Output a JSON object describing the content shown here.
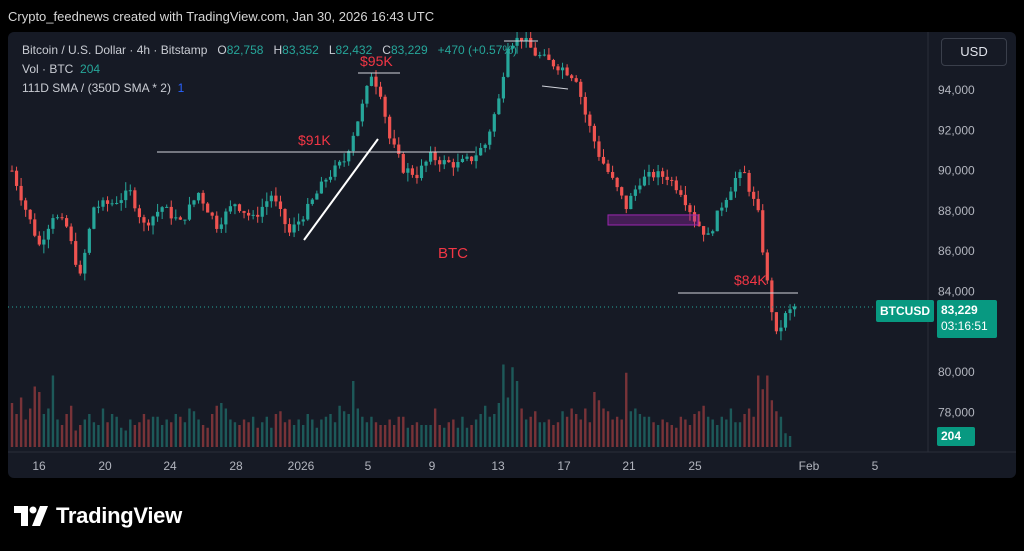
{
  "header": {
    "credit": "Crypto_feednews created with TradingView.com, Jan 30, 2026 16:43 UTC"
  },
  "legend": {
    "symbol": "Bitcoin / U.S. Dollar · 4h · Bitstamp",
    "o_label": "O",
    "o_value": "82,758",
    "h_label": "H",
    "h_value": "83,352",
    "l_label": "L",
    "l_value": "82,432",
    "c_label": "C",
    "c_value": "83,229",
    "change": "+470 (+0.57%)",
    "vol_label": "Vol · BTC",
    "vol_value": "204",
    "sma_label": "111D SMA / (350D SMA * 2)",
    "sma_value": "1"
  },
  "currency_button": "USD",
  "ticker_tag": {
    "symbol": "BTCUSD",
    "price": "83,229",
    "countdown": "03:16:51"
  },
  "volume_tag": "204",
  "brand": {
    "name": "TradingView",
    "logo_icon": "tradingview-logo-icon"
  },
  "colors": {
    "bull": "#26a69a",
    "bear": "#ef5350",
    "annotation": "#f23645",
    "zone": "#9c27b0"
  },
  "chart_data": {
    "type": "candlestick",
    "interval": "4h",
    "exchange": "Bitstamp",
    "y_axis": {
      "ticks": [
        78000,
        80000,
        82000,
        84000,
        86000,
        88000,
        90000,
        92000,
        94000
      ],
      "tick_labels": [
        "78,000",
        "80,000",
        "82,000",
        "84,000",
        "86,000",
        "88,000",
        "90,000",
        "92,000",
        "94,000"
      ],
      "ylim": [
        77200,
        97000
      ]
    },
    "x_axis": {
      "tick_labels": [
        "16",
        "20",
        "24",
        "28",
        "2026",
        "5",
        "9",
        "13",
        "17",
        "21",
        "25",
        "Feb",
        "5"
      ]
    },
    "last_price": 83229,
    "annotations": [
      {
        "text": "$95K",
        "level": 95000
      },
      {
        "text": "$91K",
        "level": 91000
      },
      {
        "text": "$84K",
        "level": 84000
      },
      {
        "text": "BTC"
      }
    ],
    "support_zone": [
      87300,
      87800
    ],
    "price_path": [
      [
        0,
        90000
      ],
      [
        3,
        88100
      ],
      [
        6,
        86300
      ],
      [
        9,
        87800
      ],
      [
        12,
        87200
      ],
      [
        15,
        84700
      ],
      [
        18,
        88200
      ],
      [
        22,
        88400
      ],
      [
        26,
        88900
      ],
      [
        29,
        87300
      ],
      [
        33,
        88200
      ],
      [
        37,
        87400
      ],
      [
        41,
        88900
      ],
      [
        45,
        87300
      ],
      [
        49,
        88400
      ],
      [
        53,
        87600
      ],
      [
        57,
        88800
      ],
      [
        61,
        86900
      ],
      [
        65,
        88100
      ],
      [
        69,
        89600
      ],
      [
        73,
        90500
      ],
      [
        77,
        93200
      ],
      [
        79,
        94800
      ],
      [
        81,
        93900
      ],
      [
        83,
        91600
      ],
      [
        86,
        90100
      ],
      [
        89,
        89800
      ],
      [
        92,
        90700
      ],
      [
        95,
        90400
      ],
      [
        98,
        90300
      ],
      [
        101,
        90600
      ],
      [
        104,
        91300
      ],
      [
        107,
        93500
      ],
      [
        109,
        96300
      ],
      [
        112,
        96600
      ],
      [
        115,
        95800
      ],
      [
        118,
        95400
      ],
      [
        121,
        95100
      ],
      [
        124,
        94600
      ],
      [
        126,
        92800
      ],
      [
        129,
        90800
      ],
      [
        132,
        89500
      ],
      [
        135,
        88200
      ],
      [
        138,
        89500
      ],
      [
        141,
        89800
      ],
      [
        144,
        89700
      ],
      [
        147,
        89000
      ],
      [
        150,
        87600
      ],
      [
        153,
        86700
      ],
      [
        156,
        88300
      ],
      [
        159,
        89600
      ],
      [
        161,
        89800
      ],
      [
        164,
        87800
      ],
      [
        166,
        84400
      ],
      [
        168,
        81800
      ],
      [
        170,
        82800
      ],
      [
        172,
        83229
      ]
    ],
    "volume": [
      80,
      60,
      90,
      50,
      70,
      110,
      100,
      60,
      70,
      130,
      50,
      40,
      60,
      75,
      30,
      40,
      50,
      60,
      45,
      40,
      70,
      45,
      60,
      55,
      35,
      30,
      50,
      40,
      45,
      60,
      50,
      55,
      55,
      40,
      50,
      45,
      60,
      55,
      45,
      70,
      65,
      50,
      40,
      35,
      60,
      75,
      80,
      70,
      50,
      45,
      40,
      50,
      45,
      55,
      35,
      45,
      55,
      35,
      60,
      65,
      45,
      50,
      40,
      50,
      40,
      60,
      50,
      35,
      50,
      55,
      60,
      45,
      75,
      65,
      60,
      120,
      70,
      55,
      45,
      55,
      45,
      40,
      40,
      50,
      40,
      55,
      55,
      35,
      40,
      45,
      40,
      40,
      40,
      70,
      40,
      35,
      45,
      50,
      35,
      55,
      35,
      40,
      50,
      60,
      75,
      55,
      60,
      80,
      150,
      90,
      145,
      120,
      70,
      50,
      55,
      65,
      45,
      45,
      50,
      40,
      45,
      65,
      55,
      70,
      60,
      50,
      70,
      45,
      100,
      85,
      70,
      65,
      50,
      55,
      50,
      135,
      65,
      70,
      60,
      55,
      55,
      45,
      40,
      50,
      45,
      40,
      35,
      55,
      50,
      40,
      60,
      65,
      75,
      55,
      50,
      40,
      55,
      50,
      70,
      45,
      45,
      60,
      70,
      55,
      130,
      105,
      130,
      85,
      65,
      55,
      25,
      20
    ]
  }
}
